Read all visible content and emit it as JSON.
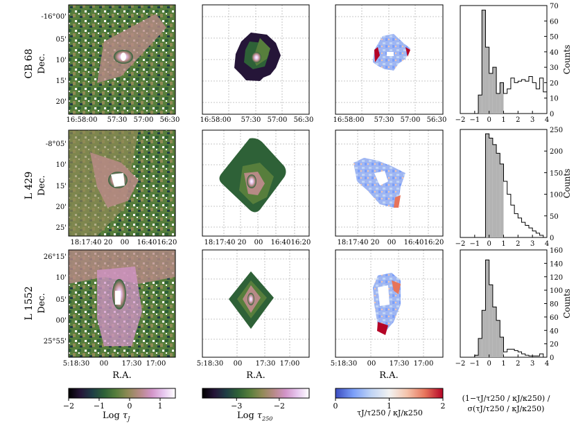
{
  "colors": {
    "frame": "#000000",
    "grid": "#b5b5b5",
    "hist_fill": "#b3b3b3",
    "cmap_tau": [
      "#000000",
      "#251538",
      "#1f3d45",
      "#2e6137",
      "#577e3c",
      "#8f8a55",
      "#b78a86",
      "#d294c8",
      "#e7c7ef",
      "#ffffff"
    ],
    "cmap_ratio": [
      "#3b4cc0",
      "#7b9ff9",
      "#c0d4f5",
      "#f2f2f2",
      "#f5c4ac",
      "#e7745b",
      "#b40426"
    ]
  },
  "chart_data": [
    {
      "type": "heatmap",
      "region": "CB 68",
      "ylabel": "CB 68\nDec.",
      "yticks": [
        "-16°00'",
        "05'",
        "10'",
        "15'",
        "20'"
      ],
      "xticks": [
        "16:58:00",
        "57:30",
        "57:00",
        "56:30"
      ],
      "panels": [
        "Log τ_J map",
        "Log τ_250 map",
        "τ_J/τ_250 / κ_J/κ_250 map"
      ]
    },
    {
      "type": "heatmap",
      "region": "L 429",
      "ylabel": "L 429\nDec.",
      "yticks": [
        "-8°05'",
        "10'",
        "15'",
        "20'",
        "25'"
      ],
      "xticks": [
        "18:17:40",
        "20",
        "00",
        "16:40",
        "16:20"
      ],
      "panels": [
        "Log τ_J map",
        "Log τ_250 map",
        "τ_J/τ_250 / κ_J/κ_250 map"
      ]
    },
    {
      "type": "heatmap",
      "region": "L 1552",
      "ylabel": "L 1552\nDec.",
      "yticks": [
        "26°15'",
        "10'",
        "05'",
        "00'",
        "25°55'"
      ],
      "xticks": [
        "5:18:30",
        "00",
        "17:30",
        "17:00"
      ],
      "xlabel": "R.A.",
      "panels": [
        "Log τ_J map",
        "Log τ_250 map",
        "τ_J/τ_250 / κ_J/κ_250 map"
      ]
    },
    {
      "type": "bar",
      "name": "CB 68 histogram",
      "xlim": [
        -2,
        4
      ],
      "xticks": [
        "−2",
        "−1",
        "0",
        "1",
        "2",
        "3",
        "4"
      ],
      "ylim": [
        0,
        70
      ],
      "yticks": [
        "0",
        "10",
        "20",
        "30",
        "40",
        "50",
        "60",
        "70"
      ],
      "ylabel": "Counts",
      "bin_edges": [
        -0.75,
        -0.5,
        -0.25,
        0,
        0.25,
        0.5,
        0.75,
        1.0,
        1.25,
        1.5,
        1.75,
        2.0,
        2.25,
        2.5,
        2.75,
        3.0,
        3.25,
        3.5,
        3.75,
        4.0
      ],
      "counts": [
        12,
        67,
        43,
        26,
        30,
        13,
        20,
        13,
        16,
        23,
        20,
        21,
        22,
        21,
        24,
        20,
        16,
        23,
        14
      ],
      "shaded_range": [
        -1,
        1
      ]
    },
    {
      "type": "bar",
      "name": "L 429 histogram",
      "xlim": [
        -2,
        4
      ],
      "xticks": [
        "−2",
        "−1",
        "0",
        "1",
        "2",
        "3",
        "4"
      ],
      "ylim": [
        0,
        250
      ],
      "yticks": [
        "0",
        "50",
        "100",
        "150",
        "200",
        "250"
      ],
      "ylabel": "Counts",
      "bin_edges": [
        -0.25,
        0,
        0.25,
        0.5,
        0.75,
        1.0,
        1.25,
        1.5,
        1.75,
        2.0,
        2.25,
        2.5,
        2.75,
        3.0,
        3.25,
        3.5,
        3.75
      ],
      "counts": [
        240,
        230,
        215,
        195,
        170,
        130,
        100,
        75,
        55,
        45,
        35,
        28,
        22,
        15,
        10,
        5
      ],
      "shaded_range": [
        -1,
        1
      ]
    },
    {
      "type": "bar",
      "name": "L 1552 histogram",
      "xlim": [
        -2,
        4
      ],
      "xticks": [
        "−2",
        "−1",
        "0",
        "1",
        "2",
        "3",
        "4"
      ],
      "ylim": [
        0,
        160
      ],
      "yticks": [
        "0",
        "20",
        "40",
        "60",
        "80",
        "100",
        "120",
        "140",
        "160"
      ],
      "ylabel": "Counts",
      "bin_edges": [
        -1.0,
        -0.75,
        -0.5,
        -0.25,
        0,
        0.25,
        0.5,
        0.75,
        1.0,
        1.25,
        1.5,
        1.75,
        2.0,
        2.25,
        2.5,
        2.75,
        3.0,
        3.25,
        3.5,
        3.75
      ],
      "counts": [
        3,
        28,
        70,
        145,
        108,
        75,
        55,
        30,
        8,
        12,
        12,
        10,
        8,
        5,
        3,
        2,
        2,
        2,
        5
      ],
      "shaded_range": [
        -1,
        1
      ]
    }
  ],
  "colorbars": [
    {
      "name": "tau-j",
      "ticks": [
        "−2",
        "−1",
        "0",
        "1"
      ],
      "range": [
        -2,
        1.5
      ],
      "label_prefix": "Log ",
      "label_var": "τ",
      "label_sub": "J"
    },
    {
      "name": "tau-250",
      "ticks": [
        "−3",
        "−2"
      ],
      "range": [
        -3.8,
        -1.3
      ],
      "label_prefix": "Log ",
      "label_var": "τ",
      "label_sub": "250"
    },
    {
      "name": "ratio",
      "ticks": [
        "0",
        "1",
        "2"
      ],
      "range": [
        0,
        2
      ],
      "label": "τJ/τ250 / κJ/κ250"
    }
  ],
  "hist_xlabel": "(1−τJ/τ250 / κJ/κ250) / σ(τJ/τ250 / κJ/κ250)"
}
